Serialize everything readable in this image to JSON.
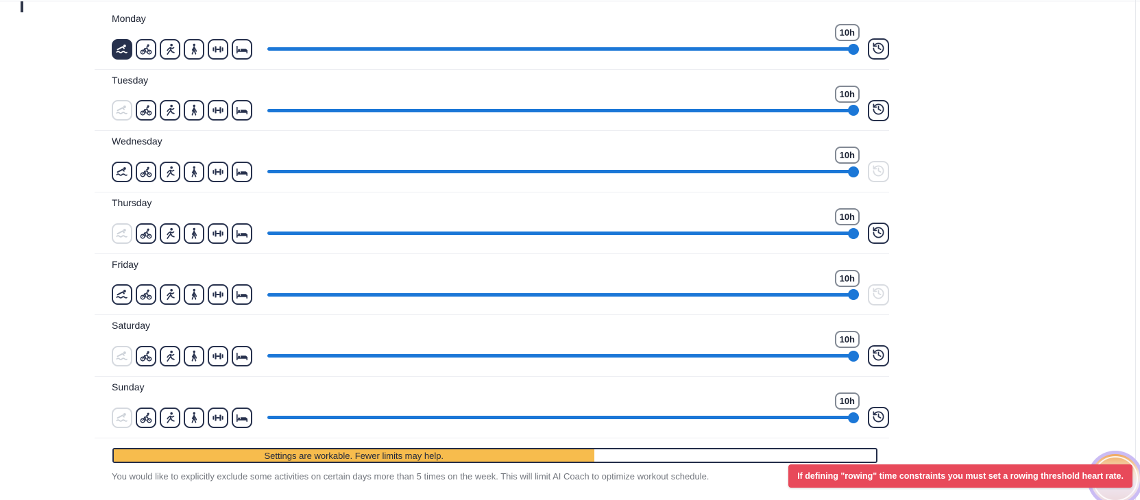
{
  "activities": [
    {
      "name": "swim",
      "icon": "swim-icon"
    },
    {
      "name": "bike",
      "icon": "bike-icon"
    },
    {
      "name": "run",
      "icon": "run-icon"
    },
    {
      "name": "walk",
      "icon": "walk-icon"
    },
    {
      "name": "strength",
      "icon": "strength-icon"
    },
    {
      "name": "sleep",
      "icon": "bed-icon"
    }
  ],
  "days": [
    {
      "label": "Monday",
      "duration_label": "10h",
      "slider_percent": 100,
      "activity_states": [
        "selected",
        "normal",
        "normal",
        "normal",
        "normal",
        "normal"
      ],
      "reset_enabled": true
    },
    {
      "label": "Tuesday",
      "duration_label": "10h",
      "slider_percent": 100,
      "activity_states": [
        "disabled",
        "normal",
        "normal",
        "normal",
        "normal",
        "normal"
      ],
      "reset_enabled": true
    },
    {
      "label": "Wednesday",
      "duration_label": "10h",
      "slider_percent": 100,
      "activity_states": [
        "normal",
        "normal",
        "normal",
        "normal",
        "normal",
        "normal"
      ],
      "reset_enabled": false
    },
    {
      "label": "Thursday",
      "duration_label": "10h",
      "slider_percent": 100,
      "activity_states": [
        "disabled",
        "normal",
        "normal",
        "normal",
        "normal",
        "normal"
      ],
      "reset_enabled": true
    },
    {
      "label": "Friday",
      "duration_label": "10h",
      "slider_percent": 100,
      "activity_states": [
        "normal",
        "normal",
        "normal",
        "normal",
        "normal",
        "normal"
      ],
      "reset_enabled": false
    },
    {
      "label": "Saturday",
      "duration_label": "10h",
      "slider_percent": 100,
      "activity_states": [
        "disabled",
        "normal",
        "normal",
        "normal",
        "normal",
        "normal"
      ],
      "reset_enabled": true
    },
    {
      "label": "Sunday",
      "duration_label": "10h",
      "slider_percent": 100,
      "activity_states": [
        "disabled",
        "normal",
        "normal",
        "normal",
        "normal",
        "normal"
      ],
      "reset_enabled": true
    }
  ],
  "summary_bar": {
    "label": "Settings are workable. Fewer limits may help.",
    "fill_percent": 63,
    "fill_color": "#f7bc4d",
    "border_color": "#232d49"
  },
  "footnote": {
    "text": "You would like to explicitly exclude some activities on certain days more than 5 times on the week. This will limit AI Coach to optimize workout schedule."
  },
  "toast": {
    "text": "If defining \"rowing\" time constraints you must set a rowing threshold heart rate.",
    "background": "#e8495a"
  },
  "colors": {
    "accent_blue": "#1b77d7",
    "navy": "#27314d",
    "disabled_gray": "#d5d9df",
    "divider": "#edeef2",
    "amber": "#f7bc4d",
    "toast_red": "#e8495a"
  }
}
